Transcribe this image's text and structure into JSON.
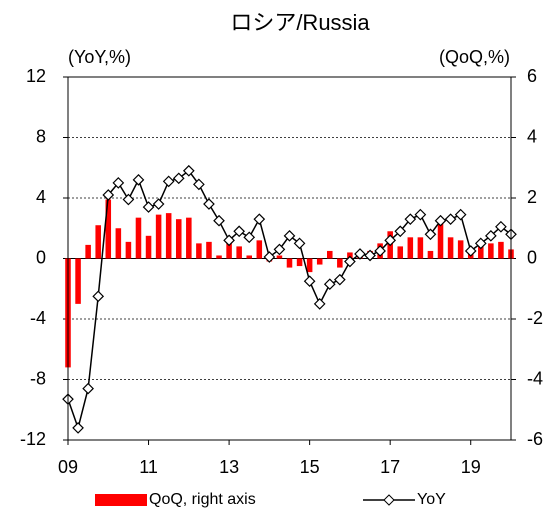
{
  "chart_data": {
    "type": "bar-line",
    "title": "ロシア/Russia",
    "y_label": "(YoY,%)",
    "y2_label": "(QoQ,%)",
    "categories": [
      "09",
      null,
      null,
      null,
      null,
      null,
      null,
      null,
      "11",
      null,
      null,
      null,
      null,
      null,
      null,
      null,
      "13",
      null,
      null,
      null,
      null,
      null,
      null,
      null,
      "15",
      null,
      null,
      null,
      null,
      null,
      null,
      null,
      "17",
      null,
      null,
      null,
      null,
      null,
      null,
      null,
      "19",
      null,
      null,
      null,
      null
    ],
    "series": [
      {
        "name": "QoQ, right axis",
        "type": "bar",
        "axis": "y2",
        "color": "#ff0000",
        "values": [
          -3.6,
          -1.5,
          0.45,
          1.1,
          1.95,
          1.0,
          0.55,
          1.35,
          0.75,
          1.45,
          1.5,
          1.3,
          1.35,
          0.5,
          0.55,
          0.1,
          0.55,
          0.4,
          0.1,
          0.6,
          -0.1,
          0.1,
          -0.3,
          -0.25,
          -0.45,
          -0.2,
          0.25,
          -0.3,
          0.2,
          0.15,
          0.25,
          0.5,
          0.9,
          0.4,
          0.7,
          0.7,
          0.25,
          1.35,
          0.7,
          0.6,
          0.35,
          0.45,
          0.5,
          0.55,
          0.3
        ]
      },
      {
        "name": "YoY",
        "type": "line",
        "axis": "y",
        "color": "#000000",
        "values": [
          -9.3,
          -11.2,
          -8.6,
          -2.5,
          4.2,
          5.0,
          3.9,
          5.2,
          3.4,
          3.6,
          5.1,
          5.3,
          5.8,
          4.9,
          3.6,
          2.5,
          1.2,
          1.8,
          1.4,
          2.6,
          0.1,
          0.6,
          1.5,
          1.0,
          -1.5,
          -3.0,
          -1.7,
          -1.4,
          -0.2,
          0.3,
          0.2,
          0.5,
          1.2,
          1.8,
          2.6,
          2.9,
          1.6,
          2.5,
          2.6,
          2.9,
          0.5,
          1.0,
          1.5,
          2.1,
          1.6
        ]
      }
    ],
    "ylim": [
      -12,
      12
    ],
    "yticks": [
      -12,
      -8,
      -4,
      0,
      4,
      8,
      12
    ],
    "y2lim": [
      -6,
      6
    ],
    "y2ticks": [
      -6,
      -4,
      -2,
      0,
      2,
      4,
      6
    ],
    "grid": true
  }
}
